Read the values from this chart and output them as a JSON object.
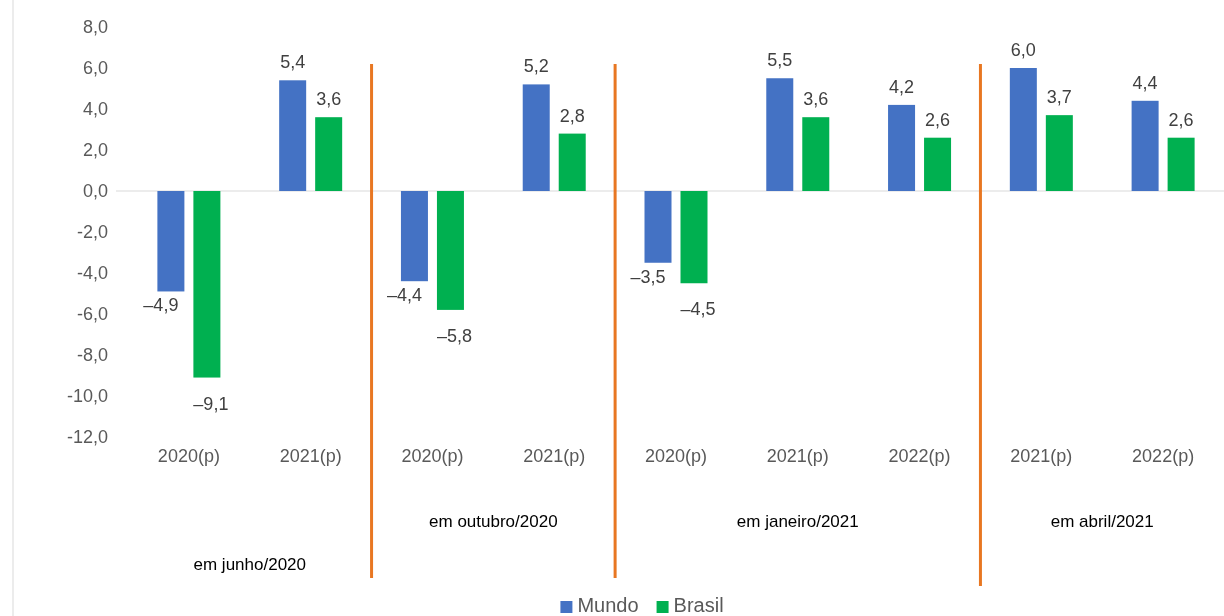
{
  "chart_data": {
    "type": "bar",
    "categories": [
      "2020(p)",
      "2021(p)",
      "2020(p)",
      "2021(p)",
      "2020(p)",
      "2021(p)",
      "2022(p)",
      "2021(p)",
      "2022(p)"
    ],
    "series": [
      {
        "name": "Mundo",
        "color": "#4472c4",
        "values": [
          -4.9,
          5.4,
          -4.4,
          5.2,
          -3.5,
          5.5,
          4.2,
          6.0,
          4.4
        ],
        "value_labels": [
          "–4,9",
          "5,4",
          "–4,4",
          "5,2",
          "–3,5",
          "5,5",
          "4,2",
          "6,0",
          "4,4"
        ]
      },
      {
        "name": "Brasil",
        "color": "#00b050",
        "values": [
          -9.1,
          3.6,
          -5.8,
          2.8,
          -4.5,
          3.6,
          2.6,
          3.7,
          2.6
        ],
        "value_labels": [
          "–9,1",
          "3,6",
          "–5,8",
          "2,8",
          "–4,5",
          "3,6",
          "2,6",
          "3,7",
          "2,6"
        ]
      }
    ],
    "ylim": [
      -12,
      8
    ],
    "yticks": [
      {
        "value": 8,
        "label": "8,0"
      },
      {
        "value": 6,
        "label": "6,0"
      },
      {
        "value": 4,
        "label": "4,0"
      },
      {
        "value": 2,
        "label": "2,0"
      },
      {
        "value": 0,
        "label": "0,0"
      },
      {
        "value": -2,
        "label": "-2,0"
      },
      {
        "value": -4,
        "label": "-4,0"
      },
      {
        "value": -6,
        "label": "-6,0"
      },
      {
        "value": -8,
        "label": "-8,0"
      },
      {
        "value": -10,
        "label": "-10,0"
      },
      {
        "value": -12,
        "label": "-12,0"
      }
    ],
    "annotations": [
      "em junho/2020",
      "em outubro/2020",
      "em janeiro/2021",
      "em abril/2021"
    ],
    "legend": "bottom",
    "grid": false
  }
}
